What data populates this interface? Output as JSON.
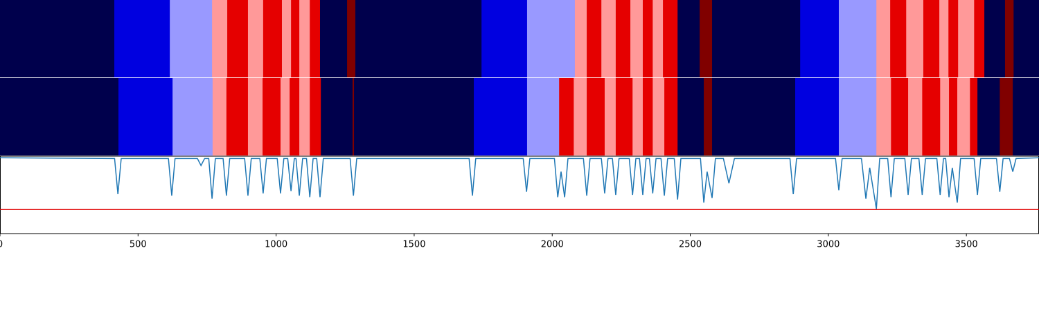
{
  "chart_data": {
    "type": "segmentation",
    "xlim": [
      0,
      3763
    ],
    "xticks": [
      0,
      500,
      1000,
      1500,
      2000,
      2500,
      3000,
      3500
    ],
    "rows": [
      {
        "bounds": [
          0,
          414,
          615,
          768,
          823,
          898,
          953,
          1021,
          1054,
          1084,
          1122,
          1159,
          1257,
          1287,
          1744,
          1909,
          2082,
          2125,
          2178,
          2230,
          2283,
          2328,
          2364,
          2401,
          2454,
          2534,
          2579,
          2898,
          3038,
          3174,
          3224,
          3282,
          3344,
          3402,
          3435,
          3470,
          3528,
          3565,
          3640,
          3671,
          3763
        ],
        "colors": [
          "#00004c",
          "#0000e0",
          "#9999ff",
          "#ff9999",
          "#e50000",
          "#ff9999",
          "#e50000",
          "#ff9999",
          "#e50000",
          "#ff9999",
          "#e50000",
          "#00004c",
          "#800000",
          "#00004c",
          "#0000e0",
          "#9999ff",
          "#ff9999",
          "#e50000",
          "#ff9999",
          "#e50000",
          "#ff9999",
          "#e50000",
          "#ff9999",
          "#e50000",
          "#00004c",
          "#800000",
          "#00004c",
          "#0000e0",
          "#9999ff",
          "#ff9999",
          "#e50000",
          "#ff9999",
          "#e50000",
          "#ff9999",
          "#e50000",
          "#ff9999",
          "#e50000",
          "#00004c",
          "#800000",
          "#00004c"
        ]
      },
      {
        "bounds": [
          0,
          429,
          625,
          770,
          820,
          898,
          951,
          1016,
          1049,
          1084,
          1122,
          1162,
          1277,
          1282,
          1716,
          1909,
          2025,
          2078,
          2125,
          2190,
          2230,
          2291,
          2328,
          2364,
          2406,
          2454,
          2549,
          2579,
          2880,
          3038,
          3174,
          3227,
          3289,
          3340,
          3405,
          3437,
          3467,
          3513,
          3540,
          3621,
          3668,
          3763
        ],
        "colors": [
          "#00004c",
          "#0000e0",
          "#9999ff",
          "#ff9999",
          "#e50000",
          "#ff9999",
          "#e50000",
          "#ff9999",
          "#e50000",
          "#ff9999",
          "#e50000",
          "#00004c",
          "#800000",
          "#00004c",
          "#0000e0",
          "#9999ff",
          "#e50000",
          "#ff9999",
          "#e50000",
          "#ff9999",
          "#e50000",
          "#ff9999",
          "#e50000",
          "#ff9999",
          "#e50000",
          "#00004c",
          "#800000",
          "#00004c",
          "#0000e0",
          "#9999ff",
          "#ff9999",
          "#e50000",
          "#ff9999",
          "#e50000",
          "#ff9999",
          "#e50000",
          "#ff9999",
          "#e50000",
          "#00004c",
          "#800000",
          "#00004c"
        ]
      }
    ],
    "line": {
      "color": "#1f77b4",
      "ylim": [
        0,
        1
      ],
      "x": [
        0,
        415,
        427,
        439,
        610,
        622,
        634,
        715,
        728,
        741,
        756,
        768,
        780,
        808,
        820,
        832,
        886,
        898,
        910,
        941,
        953,
        965,
        1004,
        1016,
        1028,
        1042,
        1054,
        1066,
        1072,
        1084,
        1096,
        1110,
        1122,
        1134,
        1147,
        1159,
        1171,
        1268,
        1280,
        1292,
        1699,
        1711,
        1723,
        1895,
        1907,
        1919,
        2008,
        2020,
        2032,
        2045,
        2057,
        2113,
        2125,
        2137,
        2178,
        2190,
        2202,
        2218,
        2230,
        2242,
        2279,
        2291,
        2303,
        2316,
        2328,
        2340,
        2352,
        2364,
        2376,
        2394,
        2406,
        2418,
        2442,
        2454,
        2466,
        2537,
        2549,
        2561,
        2579,
        2591,
        2620,
        2640,
        2660,
        2861,
        2873,
        2885,
        3026,
        3038,
        3050,
        3120,
        3136,
        3150,
        3174,
        3186,
        3215,
        3227,
        3239,
        3277,
        3289,
        3301,
        3328,
        3340,
        3352,
        3393,
        3405,
        3417,
        3425,
        3437,
        3449,
        3467,
        3479,
        3528,
        3540,
        3552,
        3609,
        3621,
        3633,
        3656,
        3668,
        3680,
        3763
      ],
      "values": [
        0.98,
        0.97,
        0.51,
        0.97,
        0.97,
        0.49,
        0.97,
        0.97,
        0.88,
        0.97,
        0.97,
        0.45,
        0.97,
        0.97,
        0.49,
        0.97,
        0.97,
        0.49,
        0.97,
        0.97,
        0.52,
        0.97,
        0.97,
        0.52,
        0.97,
        0.97,
        0.55,
        0.97,
        0.97,
        0.49,
        0.97,
        0.97,
        0.47,
        0.97,
        0.97,
        0.47,
        0.97,
        0.97,
        0.49,
        0.97,
        0.97,
        0.49,
        0.97,
        0.97,
        0.54,
        0.97,
        0.97,
        0.47,
        0.8,
        0.47,
        0.97,
        0.97,
        0.49,
        0.97,
        0.97,
        0.52,
        0.97,
        0.97,
        0.5,
        0.97,
        0.97,
        0.5,
        0.97,
        0.97,
        0.5,
        0.97,
        0.97,
        0.52,
        0.97,
        0.97,
        0.49,
        0.97,
        0.97,
        0.44,
        0.97,
        0.97,
        0.4,
        0.8,
        0.46,
        0.97,
        0.97,
        0.65,
        0.97,
        0.97,
        0.51,
        0.97,
        0.97,
        0.56,
        0.97,
        0.97,
        0.45,
        0.85,
        0.32,
        0.97,
        0.97,
        0.47,
        0.97,
        0.97,
        0.5,
        0.97,
        0.97,
        0.5,
        0.97,
        0.97,
        0.5,
        0.97,
        0.97,
        0.47,
        0.85,
        0.4,
        0.97,
        0.97,
        0.5,
        0.97,
        0.97,
        0.54,
        0.97,
        0.97,
        0.8,
        0.97,
        0.98
      ]
    },
    "threshold": {
      "value": 0.31,
      "color": "#e00000"
    }
  }
}
